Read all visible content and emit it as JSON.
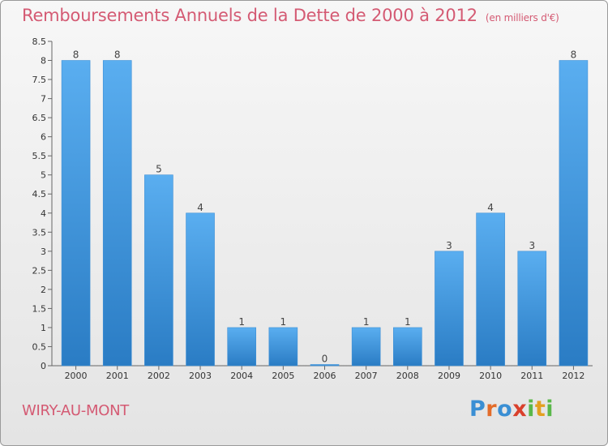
{
  "header": {
    "title": "Remboursements Annuels de la Dette de 2000 à 2012",
    "unit": "(en milliers d'€)"
  },
  "footer": {
    "commune": "WIRY-AU-MONT",
    "logo_letters": [
      "P",
      "r",
      "o",
      "x",
      "i",
      "t",
      "i"
    ]
  },
  "colors": {
    "title": "#d45a73",
    "bar_light": "#5aaef0",
    "bar_dark": "#2a7cc4",
    "logo": [
      "#3a8fd4",
      "#e36c2a",
      "#3a8fd4",
      "#d9402c",
      "#5ab84a",
      "#e3a020",
      "#5ab84a"
    ]
  },
  "chart_data": {
    "type": "bar",
    "title": "Remboursements Annuels de la Dette de 2000 à 2012",
    "xlabel": "",
    "ylabel": "",
    "categories": [
      "2000",
      "2001",
      "2002",
      "2003",
      "2004",
      "2005",
      "2006",
      "2007",
      "2008",
      "2009",
      "2010",
      "2011",
      "2012"
    ],
    "values": [
      8,
      8,
      5,
      4,
      1,
      1,
      0,
      1,
      1,
      3,
      4,
      3,
      8
    ],
    "value_labels": [
      "8",
      "8",
      "5",
      "4",
      "1",
      "1",
      "0",
      "1",
      "1",
      "3",
      "4",
      "3",
      "8"
    ],
    "ylim": [
      0,
      8.5
    ],
    "yticks": [
      0,
      0.5,
      1,
      1.5,
      2,
      2.5,
      3,
      3.5,
      4,
      4.5,
      5,
      5.5,
      6,
      6.5,
      7,
      7.5,
      8,
      8.5
    ],
    "ytick_labels": [
      "0",
      "0.5",
      "1",
      "1.5",
      "2",
      "2.5",
      "3",
      "3.5",
      "4",
      "4.5",
      "5",
      "5.5",
      "6",
      "6.5",
      "7",
      "7.5",
      "8",
      "8.5"
    ],
    "grid": false
  }
}
